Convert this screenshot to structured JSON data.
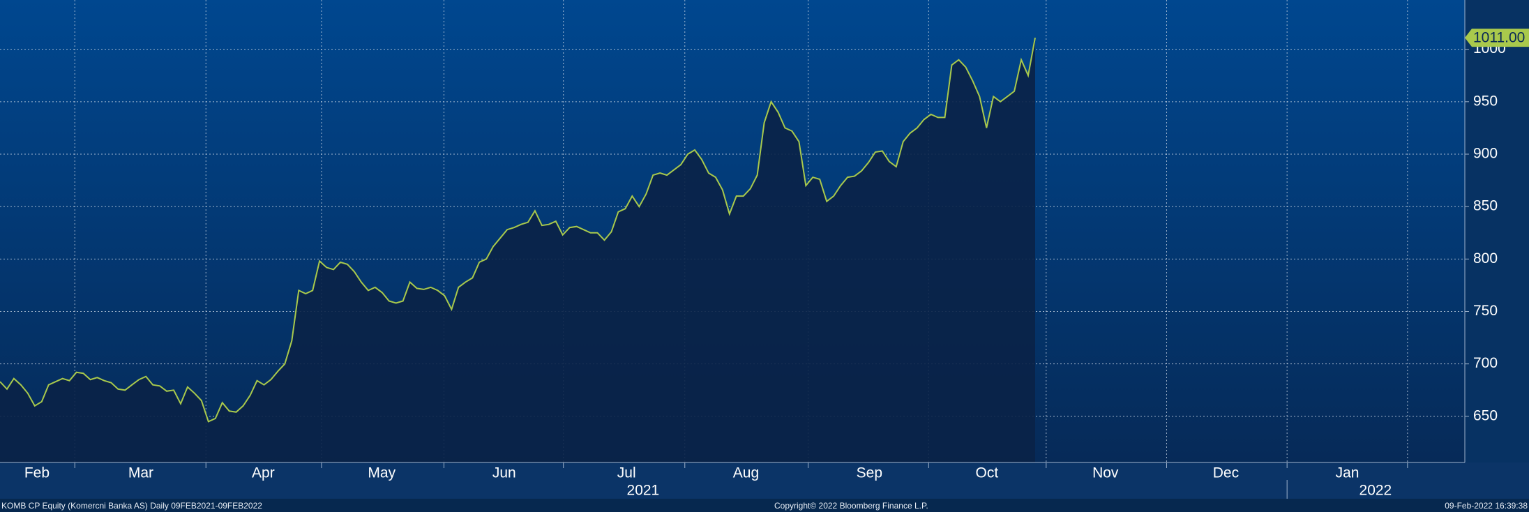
{
  "chart_data": {
    "type": "area-line",
    "ticker": "KOMB CP Equity (Komercni Banka AS)  Daily 09FEB2021-09FEB2022",
    "copyright": "Copyright© 2022 Bloomberg Finance L.P.",
    "timestamp": "09-Feb-2022 16:39:38",
    "color": "#a9c94c",
    "area_color": "#0a2247",
    "values": [
      683,
      676,
      686,
      680,
      672,
      660,
      664,
      680,
      683,
      686,
      684,
      692,
      691,
      685,
      687,
      684,
      682,
      676,
      675,
      680,
      685,
      688,
      680,
      679,
      674,
      675,
      662,
      678,
      672,
      665,
      645,
      648,
      663,
      655,
      654,
      660,
      670,
      684,
      680,
      685,
      693,
      700,
      722,
      770,
      767,
      770,
      798,
      792,
      790,
      797,
      795,
      788,
      778,
      770,
      773,
      768,
      760,
      758,
      760,
      778,
      772,
      771,
      773,
      770,
      765,
      752,
      773,
      778,
      782,
      797,
      800,
      812,
      820,
      828,
      830,
      833,
      835,
      846,
      832,
      833,
      836,
      823,
      830,
      831,
      828,
      825,
      825,
      818,
      826,
      845,
      848,
      860,
      850,
      862,
      880,
      882,
      880,
      885,
      890,
      900,
      904,
      895,
      882,
      878,
      866,
      843,
      860,
      860,
      867,
      880,
      930,
      950,
      940,
      925,
      922,
      912,
      870,
      878,
      876,
      855,
      860,
      870,
      878,
      879,
      884,
      892,
      902,
      903,
      893,
      888,
      912,
      920,
      925,
      933,
      938,
      935,
      935,
      985,
      990,
      983,
      970,
      955,
      925,
      955,
      950,
      955,
      960,
      990,
      975,
      1011
    ],
    "last_value_label": {
      "value": 1011,
      "label": "1011.00"
    },
    "xlim": [
      0,
      150.8
    ],
    "ylim": [
      606,
      1047
    ],
    "yticks": [
      650,
      700,
      750,
      800,
      850,
      900,
      950,
      1000
    ],
    "xgrid": [
      7.7,
      21.2,
      33.1,
      45.7,
      58.0,
      70.5,
      83.2,
      95.6,
      107.7,
      120.1,
      132.5,
      144.9
    ],
    "xticks": [
      {
        "value": 3.8,
        "label": "Feb"
      },
      {
        "value": 14.5,
        "label": "Mar"
      },
      {
        "value": 27.1,
        "label": "Apr"
      },
      {
        "value": 39.3,
        "label": "May"
      },
      {
        "value": 51.9,
        "label": "Jun"
      },
      {
        "value": 64.5,
        "label": "Jul"
      },
      {
        "value": 76.8,
        "label": "Aug"
      },
      {
        "value": 89.5,
        "label": "Sep"
      },
      {
        "value": 101.6,
        "label": "Oct"
      },
      {
        "value": 113.8,
        "label": "Nov"
      },
      {
        "value": 126.2,
        "label": "Dec"
      },
      {
        "value": 138.7,
        "label": "Jan"
      }
    ],
    "year_labels": [
      {
        "value": 66.2,
        "label": "2021"
      },
      {
        "value": 141.6,
        "label": "2022"
      }
    ],
    "year_separators": [
      132.5
    ],
    "grid": true
  }
}
